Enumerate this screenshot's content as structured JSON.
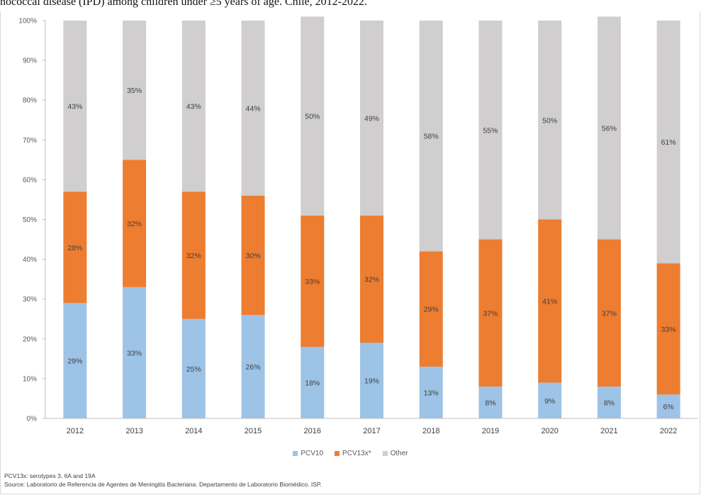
{
  "page": {
    "top_title": "nococcal disease (IPD) among children under ≥5 years of age. Chile, 2012-2022."
  },
  "chart_data": {
    "type": "bar",
    "stacked": true,
    "percent": true,
    "categories": [
      "2012",
      "2013",
      "2014",
      "2015",
      "2016",
      "2017",
      "2018",
      "2019",
      "2020",
      "2021",
      "2022"
    ],
    "series": [
      {
        "name": "PCV10",
        "color": "#9dc3e6",
        "values": [
          29,
          33,
          25,
          26,
          18,
          19,
          13,
          8,
          9,
          8,
          6
        ]
      },
      {
        "name": "PCV13x*",
        "color": "#ed7d31",
        "values": [
          28,
          32,
          32,
          30,
          33,
          32,
          29,
          37,
          41,
          37,
          33
        ]
      },
      {
        "name": "Other",
        "color": "#d0cece",
        "values": [
          43,
          35,
          43,
          44,
          50,
          49,
          58,
          55,
          50,
          56,
          61
        ]
      }
    ],
    "y_ticks": [
      "0%",
      "10%",
      "20%",
      "30%",
      "40%",
      "50%",
      "60%",
      "70%",
      "80%",
      "90%",
      "100%"
    ],
    "ylim": [
      0,
      100
    ],
    "legend_position": "bottom",
    "grid": false
  },
  "footnotes": {
    "note": "PCV13x: serotypes 3, 6A and 19A",
    "source": "Source: Laboratorio de Referencia de Agentes de Meningitis Bacteriana. Departamento de Laboratorio Biomédico. ISP."
  }
}
